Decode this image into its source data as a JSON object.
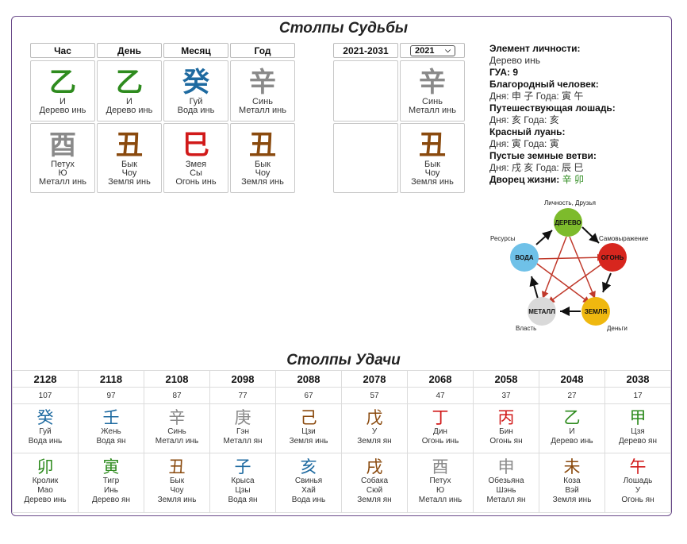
{
  "titles": {
    "pillars": "Столпы Судьбы",
    "luck": "Столпы Удачи"
  },
  "pillars": {
    "headers": [
      "Час",
      "День",
      "Месяц",
      "Год"
    ],
    "stems": [
      {
        "glyph": "乙",
        "name": "И",
        "element": "Дерево инь",
        "color": "#2e8b1e"
      },
      {
        "glyph": "乙",
        "name": "И",
        "element": "Дерево инь",
        "color": "#2e8b1e"
      },
      {
        "glyph": "癸",
        "name": "Гуй",
        "element": "Вода инь",
        "color": "#1e6aa0"
      },
      {
        "glyph": "辛",
        "name": "Синь",
        "element": "Металл инь",
        "color": "#8a8a8a"
      }
    ],
    "branches": [
      {
        "glyph": "酉",
        "animal": "Петух",
        "name": "Ю",
        "element": "Металл инь",
        "color": "#8a8a8a"
      },
      {
        "glyph": "丑",
        "animal": "Бык",
        "name": "Чоу",
        "element": "Земля инь",
        "color": "#8a4a0e"
      },
      {
        "glyph": "巳",
        "animal": "Змея",
        "name": "Сы",
        "element": "Огонь инь",
        "color": "#d11a1a"
      },
      {
        "glyph": "丑",
        "animal": "Бык",
        "name": "Чоу",
        "element": "Земля инь",
        "color": "#8a4a0e"
      }
    ]
  },
  "period": {
    "range_label": "2021-2031",
    "year_select": "2021",
    "stem": {
      "glyph": "辛",
      "name": "Синь",
      "element": "Металл инь",
      "color": "#8a8a8a"
    },
    "branch": {
      "glyph": "丑",
      "animal": "Бык",
      "name": "Чоу",
      "element": "Земля инь",
      "color": "#8a4a0e"
    }
  },
  "info": {
    "personality_label": "Элемент личности:",
    "personality_value": "Дерево инь",
    "gua_label": "ГУА: 9",
    "noble_label": "Благородный человек:",
    "noble_value": "Дня: 申 子 Года: 寅 午",
    "horse_label": "Путешествующая лошадь:",
    "horse_value": "Дня: 亥 Года: 亥",
    "peach_label": "Красный луань:",
    "peach_value": "Дня: 寅 Года: 寅",
    "empty_label": "Пустые земные ветви:",
    "empty_value": "Дня: 戌 亥 Года: 辰 巳",
    "palace_label": "Дворец жизни:",
    "palace_value": "辛 卯"
  },
  "wheel": {
    "labels": {
      "wood_top": "Личность, Друзья",
      "self": "Самовыражение",
      "resources": "Ресурсы",
      "power": "Власть",
      "money": "Деньги"
    },
    "nodes": {
      "wood": "ДЕРЕВО",
      "fire": "ОГОНЬ",
      "earth": "ЗЕМЛЯ",
      "metal": "МЕТАЛЛ",
      "water": "ВОДА"
    },
    "colors": {
      "wood": "#7dbb2c",
      "fire": "#d7261e",
      "earth": "#efb80f",
      "metal": "#d9d9d9",
      "water": "#6fc1e8",
      "arrow": "#c0392b"
    }
  },
  "luck": {
    "years": [
      "2128",
      "2118",
      "2108",
      "2098",
      "2088",
      "2078",
      "2068",
      "2058",
      "2048",
      "2038"
    ],
    "ages": [
      "107",
      "97",
      "87",
      "77",
      "67",
      "57",
      "47",
      "37",
      "27",
      "17"
    ],
    "stems": [
      {
        "glyph": "癸",
        "name": "Гуй",
        "element": "Вода инь",
        "cls": "c-water"
      },
      {
        "glyph": "壬",
        "name": "Жень",
        "element": "Вода ян",
        "cls": "c-water"
      },
      {
        "glyph": "辛",
        "name": "Синь",
        "element": "Металл инь",
        "cls": "c-metal"
      },
      {
        "glyph": "庚",
        "name": "Гэн",
        "element": "Металл ян",
        "cls": "c-metal"
      },
      {
        "glyph": "己",
        "name": "Цзи",
        "element": "Земля инь",
        "cls": "c-earth"
      },
      {
        "glyph": "戊",
        "name": "У",
        "element": "Земля ян",
        "cls": "c-earth"
      },
      {
        "glyph": "丁",
        "name": "Дин",
        "element": "Огонь инь",
        "cls": "c-fire"
      },
      {
        "glyph": "丙",
        "name": "Бин",
        "element": "Огонь ян",
        "cls": "c-fire"
      },
      {
        "glyph": "乙",
        "name": "И",
        "element": "Дерево инь",
        "cls": "c-wood"
      },
      {
        "glyph": "甲",
        "name": "Цзя",
        "element": "Дерево ян",
        "cls": "c-wood"
      }
    ],
    "branches": [
      {
        "glyph": "卯",
        "animal": "Кролик",
        "name": "Мао",
        "element": "Дерево инь",
        "cls": "c-wood"
      },
      {
        "glyph": "寅",
        "animal": "Тигр",
        "name": "Инь",
        "element": "Дерево ян",
        "cls": "c-wood"
      },
      {
        "glyph": "丑",
        "animal": "Бык",
        "name": "Чоу",
        "element": "Земля инь",
        "cls": "c-earth"
      },
      {
        "glyph": "子",
        "animal": "Крыса",
        "name": "Цзы",
        "element": "Вода ян",
        "cls": "c-water"
      },
      {
        "glyph": "亥",
        "animal": "Свинья",
        "name": "Хай",
        "element": "Вода инь",
        "cls": "c-water"
      },
      {
        "glyph": "戌",
        "animal": "Собака",
        "name": "Сюй",
        "element": "Земля ян",
        "cls": "c-earth"
      },
      {
        "glyph": "酉",
        "animal": "Петух",
        "name": "Ю",
        "element": "Металл инь",
        "cls": "c-metal"
      },
      {
        "glyph": "申",
        "animal": "Обезьяна",
        "name": "Шэнь",
        "element": "Металл ян",
        "cls": "c-metal"
      },
      {
        "glyph": "未",
        "animal": "Коза",
        "name": "Вэй",
        "element": "Земля инь",
        "cls": "c-earth"
      },
      {
        "glyph": "午",
        "animal": "Лошадь",
        "name": "У",
        "element": "Огонь ян",
        "cls": "c-fire"
      }
    ]
  }
}
